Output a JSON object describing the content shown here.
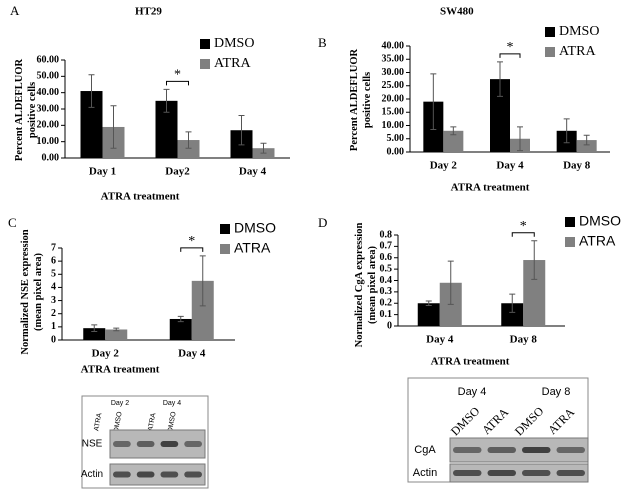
{
  "chart_data": [
    {
      "type": "bar",
      "panel": "A",
      "title": "HT29",
      "ylabel": [
        "Percent ALDEFLUOR",
        "positive cells"
      ],
      "xlabel": "ATRA treatment",
      "categories": [
        "Day 1",
        "Day2",
        "Day 4"
      ],
      "series": [
        {
          "name": "DMSO",
          "color": "#000000",
          "values": [
            41,
            35,
            17
          ],
          "errors": [
            10,
            7,
            9
          ]
        },
        {
          "name": "ATRA",
          "color": "#808080",
          "values": [
            19,
            11,
            6
          ],
          "errors": [
            13,
            5,
            3
          ]
        }
      ],
      "ylim": [
        0,
        60
      ],
      "yticks": [
        {
          "value": 0,
          "label": "0.00"
        },
        {
          "value": 10,
          "label": "10.00"
        },
        {
          "value": 20,
          "label": "20.00"
        },
        {
          "value": 30,
          "label": "30.00"
        },
        {
          "value": 40,
          "label": "40.00"
        },
        {
          "value": 50,
          "label": "50.00"
        },
        {
          "value": 60,
          "label": "60.00"
        }
      ],
      "annotation": "*"
    },
    {
      "type": "bar",
      "panel": "B",
      "title": "SW480",
      "ylabel": [
        "Percent ALDEFLUOR",
        "positive cells"
      ],
      "xlabel": "ATRA treatment",
      "categories": [
        "Day 2",
        "Day 4",
        "Day 8"
      ],
      "series": [
        {
          "name": "DMSO",
          "color": "#000000",
          "values": [
            19,
            27.5,
            8
          ],
          "errors": [
            10.5,
            6.5,
            4.5
          ]
        },
        {
          "name": "ATRA",
          "color": "#808080",
          "values": [
            8,
            5,
            4.5
          ],
          "errors": [
            1.5,
            4.5,
            1.8
          ]
        }
      ],
      "ylim": [
        0,
        40
      ],
      "yticks": [
        {
          "value": 0,
          "label": "0.00"
        },
        {
          "value": 5,
          "label": "5.00"
        },
        {
          "value": 10,
          "label": "10.00"
        },
        {
          "value": 15,
          "label": "15.00"
        },
        {
          "value": 20,
          "label": "20.00"
        },
        {
          "value": 25,
          "label": "25.00"
        },
        {
          "value": 30,
          "label": "30.00"
        },
        {
          "value": 35,
          "label": "35.00"
        },
        {
          "value": 40,
          "label": "40.00"
        }
      ],
      "annotation": "*"
    },
    {
      "type": "bar",
      "panel": "C",
      "ylabel": [
        "Normalized  NSE expression",
        "(mean pixel area)"
      ],
      "xlabel": "ATRA treatment",
      "categories": [
        "Day 2",
        "Day 4"
      ],
      "series": [
        {
          "name": "DMSO",
          "color": "#000000",
          "values": [
            0.9,
            1.6
          ],
          "errors": [
            0.25,
            0.2
          ]
        },
        {
          "name": "ATRA",
          "color": "#808080",
          "values": [
            0.8,
            4.5
          ],
          "errors": [
            0.1,
            1.9
          ]
        }
      ],
      "ylim": [
        0,
        7
      ],
      "yticks": [
        0,
        1,
        2,
        3,
        4,
        5,
        6,
        7
      ],
      "annotation": "*"
    },
    {
      "type": "bar",
      "panel": "D",
      "ylabel": [
        "Normalized  CgA expression",
        "(mean pixel area)"
      ],
      "xlabel": "ATRA treatment",
      "categories": [
        "Day 4",
        "Day 8"
      ],
      "series": [
        {
          "name": "DMSO",
          "color": "#000000",
          "values": [
            0.2,
            0.2
          ],
          "errors": [
            0.02,
            0.08
          ]
        },
        {
          "name": "ATRA",
          "color": "#808080",
          "values": [
            0.38,
            0.58
          ],
          "errors": [
            0.19,
            0.17
          ]
        }
      ],
      "ylim": [
        0,
        0.8
      ],
      "yticks": [
        0,
        0.1,
        0.2,
        0.3,
        0.4,
        0.5,
        0.6,
        0.7,
        0.8
      ],
      "annotation": "*"
    }
  ],
  "blots": [
    {
      "days": [
        "Day 2",
        "Day 4"
      ],
      "lanes": [
        "ATRA",
        "DMSO",
        "ATRA",
        "DMSO"
      ],
      "rows": [
        "NSE",
        "Actin"
      ]
    },
    {
      "days": [
        "Day 4",
        "Day 8"
      ],
      "lanes": [
        "DMSO",
        "ATRA",
        "DMSO",
        "ATRA"
      ],
      "rows": [
        "CgA",
        "Actin"
      ]
    }
  ]
}
